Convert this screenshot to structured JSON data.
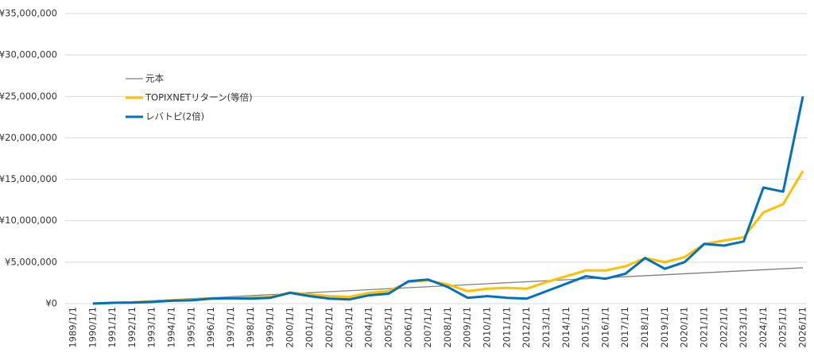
{
  "chart_data": {
    "type": "line",
    "categories": [
      "1989/1/1",
      "1990/1/1",
      "1991/1/1",
      "1992/1/1",
      "1993/1/1",
      "1994/1/1",
      "1995/1/1",
      "1996/1/1",
      "1997/1/1",
      "1998/1/1",
      "1999/1/1",
      "2000/1/1",
      "2001/1/1",
      "2002/1/1",
      "2003/1/1",
      "2004/1/1",
      "2005/1/1",
      "2006/1/1",
      "2007/1/1",
      "2008/1/1",
      "2009/1/1",
      "2010/1/1",
      "2011/1/1",
      "2012/1/1",
      "2013/1/1",
      "2014/1/1",
      "2015/1/1",
      "2016/1/1",
      "2017/1/1",
      "2018/1/1",
      "2019/1/1",
      "2020/1/1",
      "2021/1/1",
      "2022/1/1",
      "2023/1/1",
      "2024/1/1",
      "2025/1/1",
      "2026/1/1"
    ],
    "series": [
      {
        "name": "元本",
        "color": "#7f7f7f",
        "width": 1.3,
        "values": [
          null,
          0,
          120000,
          240000,
          360000,
          480000,
          600000,
          720000,
          840000,
          960000,
          1080000,
          1200000,
          1320000,
          1440000,
          1560000,
          1680000,
          1800000,
          1920000,
          2040000,
          2160000,
          2280000,
          2400000,
          2520000,
          2640000,
          2760000,
          2880000,
          3000000,
          3120000,
          3240000,
          3360000,
          3480000,
          3600000,
          3720000,
          3840000,
          3960000,
          4080000,
          4200000,
          4320000
        ]
      },
      {
        "name": "TOPIXNETリターン(等倍)",
        "color": "#ffc000",
        "width": 3,
        "values": [
          null,
          0,
          100000,
          150000,
          250000,
          400000,
          450000,
          650000,
          700000,
          750000,
          800000,
          1350000,
          1100000,
          900000,
          800000,
          1300000,
          1500000,
          2600000,
          2800000,
          2300000,
          1500000,
          1800000,
          1900000,
          1800000,
          2600000,
          3300000,
          4000000,
          4000000,
          4500000,
          5500000,
          5000000,
          5600000,
          7200000,
          7600000,
          8000000,
          11000000,
          12000000,
          16000000
        ]
      },
      {
        "name": "レバトピ(2倍)",
        "color": "#0070c0",
        "width": 3,
        "values": [
          null,
          0,
          100000,
          120000,
          200000,
          350000,
          400000,
          600000,
          650000,
          600000,
          700000,
          1300000,
          900000,
          600000,
          500000,
          1000000,
          1200000,
          2700000,
          2900000,
          2000000,
          700000,
          900000,
          700000,
          600000,
          1500000,
          2400000,
          3300000,
          3000000,
          3600000,
          5500000,
          4200000,
          5000000,
          7200000,
          7000000,
          7500000,
          14000000,
          13500000,
          25000000
        ]
      }
    ],
    "ylim": [
      0,
      35000000
    ],
    "yticks": [
      {
        "value": 0,
        "label": "¥0"
      },
      {
        "value": 5000000,
        "label": "¥5,000,000"
      },
      {
        "value": 10000000,
        "label": "¥10,000,000"
      },
      {
        "value": 15000000,
        "label": "¥15,000,000"
      },
      {
        "value": 20000000,
        "label": "¥20,000,000"
      },
      {
        "value": 25000000,
        "label": "¥25,000,000"
      },
      {
        "value": 30000000,
        "label": "¥30,000,000"
      },
      {
        "value": 35000000,
        "label": "¥35,000,000"
      }
    ],
    "grid": true
  }
}
